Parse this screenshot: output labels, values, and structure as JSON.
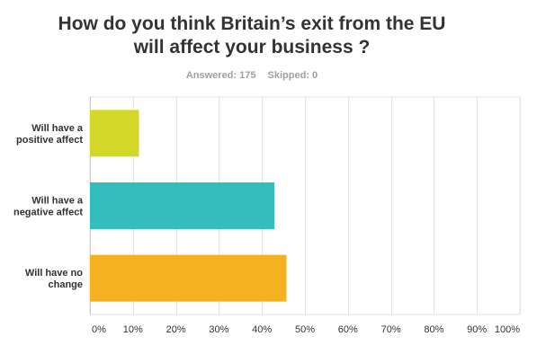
{
  "header": {
    "title_line1": "How do you think Britain’s exit from the EU",
    "title_line2": "will affect your business ?",
    "answered": "Answered: 175",
    "skipped": "Skipped: 0"
  },
  "chart_data": {
    "type": "bar",
    "orientation": "horizontal",
    "categories": [
      [
        "Will have a",
        "positive affect"
      ],
      [
        "Will have a",
        "negative affect"
      ],
      [
        "Will have no",
        "change"
      ]
    ],
    "values": [
      11.4,
      42.9,
      45.7
    ],
    "colors": [
      "#d2d728",
      "#33bdbd",
      "#f5b120"
    ],
    "xlim": [
      0,
      100
    ],
    "ticks": [
      "0%",
      "10%",
      "20%",
      "30%",
      "40%",
      "50%",
      "60%",
      "70%",
      "80%",
      "90%",
      "100%"
    ],
    "grid": true
  }
}
